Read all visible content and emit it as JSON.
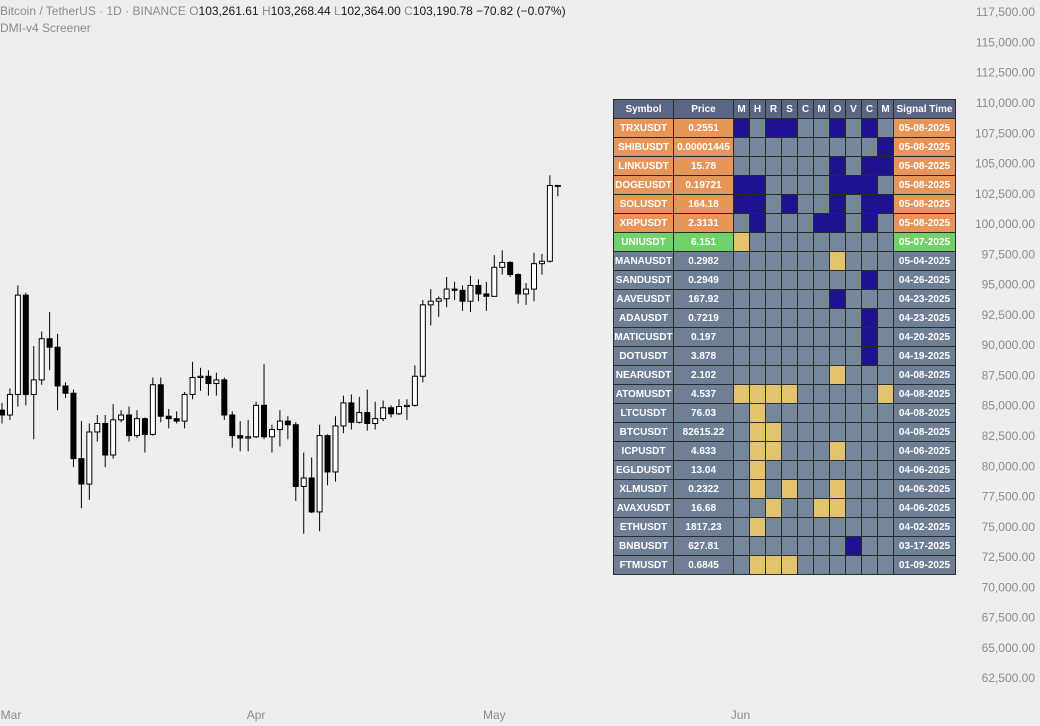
{
  "header": {
    "symbol": "Bitcoin / TetherUS · 1D · BINANCE",
    "ohlc": [
      {
        "label": "O",
        "value": "103,261.61"
      },
      {
        "label": "H",
        "value": "103,268.44"
      },
      {
        "label": "L",
        "value": "102,364.00"
      },
      {
        "label": "C",
        "value": "103,190.78"
      }
    ],
    "change": "−70.82 (−0.07%)",
    "indicator": "DMI-v4 Screener"
  },
  "chart_data": {
    "type": "candlestick",
    "open": [
      84700,
      84300,
      86000,
      94200,
      86000,
      87200,
      90600,
      89900,
      86700,
      86100,
      80700,
      78600,
      82900,
      83600,
      81000,
      83900,
      84300,
      82600,
      84000,
      82700,
      86800,
      84200,
      84000,
      83800,
      86000,
      87400,
      87500,
      86900,
      87200,
      84300,
      82600,
      82400,
      82500,
      85100,
      82500,
      83100,
      83800,
      83500,
      78400,
      79100,
      76300,
      82600,
      79600,
      83400,
      85300,
      83700,
      84500,
      83600,
      84000,
      84900,
      84400,
      85000,
      85100,
      87500,
      93400,
      93700,
      93900,
      94700,
      94600,
      93700,
      95000,
      94300,
      94100,
      96500,
      96900,
      95900,
      94300,
      94700,
      96800,
      97000,
      103261.61
    ],
    "high": [
      85300,
      86500,
      95000,
      94400,
      90000,
      91200,
      92800,
      91000,
      87000,
      86400,
      83800,
      83600,
      84300,
      84300,
      85200,
      84700,
      85000,
      84700,
      84100,
      87400,
      87400,
      84800,
      84600,
      86200,
      88700,
      88200,
      88000,
      87800,
      87400,
      84600,
      83800,
      83900,
      85400,
      88500,
      83500,
      84700,
      84200,
      83700,
      81200,
      80800,
      83500,
      82700,
      84200,
      85900,
      86000,
      85800,
      86400,
      85400,
      85500,
      85100,
      85600,
      85600,
      88400,
      93800,
      94700,
      94100,
      95700,
      95300,
      95000,
      95800,
      95500,
      95300,
      97500,
      97900,
      97000,
      96000,
      95200,
      97700,
      97600,
      104100,
      103268.44
    ],
    "low": [
      83600,
      83900,
      85000,
      85100,
      82300,
      86800,
      88000,
      84700,
      85700,
      80000,
      76600,
      77300,
      82100,
      80000,
      80700,
      83700,
      82100,
      82400,
      81200,
      82600,
      83700,
      83200,
      83600,
      83200,
      85600,
      86300,
      85900,
      85900,
      83900,
      81600,
      81300,
      81300,
      82400,
      82300,
      81200,
      81700,
      82300,
      77200,
      74500,
      76200,
      74700,
      78500,
      78800,
      82800,
      83100,
      83600,
      83000,
      83100,
      83800,
      84100,
      84300,
      83900,
      85000,
      87000,
      91700,
      92400,
      93200,
      93800,
      92900,
      92800,
      93700,
      92900,
      94100,
      95900,
      95700,
      93500,
      93400,
      93700,
      95900,
      96900,
      102364
    ],
    "close": [
      84300,
      86000,
      94200,
      86000,
      87200,
      90600,
      89900,
      86700,
      86100,
      80700,
      78600,
      82900,
      83600,
      81000,
      83900,
      84300,
      82600,
      84000,
      82700,
      86800,
      84200,
      84000,
      83800,
      86000,
      87400,
      87500,
      86900,
      87200,
      84300,
      82600,
      82400,
      82500,
      85100,
      82500,
      83100,
      83800,
      83500,
      78400,
      79100,
      76300,
      82600,
      79600,
      83400,
      85300,
      83700,
      84500,
      83600,
      84000,
      84900,
      84400,
      85000,
      85100,
      87500,
      93400,
      93700,
      93900,
      94700,
      94600,
      93700,
      95000,
      94300,
      94100,
      96500,
      96900,
      95900,
      94300,
      94700,
      96800,
      97000,
      103250,
      103190.78
    ],
    "up_color": "#ffffff",
    "down_color": "#000000",
    "wick_color": "#000000",
    "xlim": [
      -0.25,
      120.65
    ],
    "xticks": [
      {
        "value": 1,
        "label": "Mar"
      },
      {
        "value": 32,
        "label": "Apr"
      },
      {
        "value": 62,
        "label": "May"
      },
      {
        "value": 93,
        "label": "Jun"
      }
    ],
    "ylim": [
      62500,
      117500
    ],
    "yticks": [
      {
        "value": 117500,
        "label": "117,500.00"
      },
      {
        "value": 115000,
        "label": "115,000.00"
      },
      {
        "value": 112500,
        "label": "112,500.00"
      },
      {
        "value": 110000,
        "label": "110,000.00"
      },
      {
        "value": 107500,
        "label": "107,500.00"
      },
      {
        "value": 105000,
        "label": "105,000.00"
      },
      {
        "value": 102500,
        "label": "102,500.00"
      },
      {
        "value": 100000,
        "label": "100,000.00"
      },
      {
        "value": 97500,
        "label": "97,500.00"
      },
      {
        "value": 95000,
        "label": "95,000.00"
      },
      {
        "value": 92500,
        "label": "92,500.00"
      },
      {
        "value": 90000,
        "label": "90,000.00"
      },
      {
        "value": 87500,
        "label": "87,500.00"
      },
      {
        "value": 85000,
        "label": "85,000.00"
      },
      {
        "value": 82500,
        "label": "82,500.00"
      },
      {
        "value": 80000,
        "label": "80,000.00"
      },
      {
        "value": 77500,
        "label": "77,500.00"
      },
      {
        "value": 75000,
        "label": "75,000.00"
      },
      {
        "value": 72500,
        "label": "72,500.00"
      },
      {
        "value": 70000,
        "label": "70,000.00"
      },
      {
        "value": 67500,
        "label": "67,500.00"
      },
      {
        "value": 65000,
        "label": "65,000.00"
      },
      {
        "value": 62500,
        "label": "62,500.00"
      }
    ]
  },
  "screener": {
    "columns": [
      "Symbol",
      "Price",
      "M",
      "H",
      "R",
      "S",
      "C",
      "M",
      "O",
      "V",
      "C",
      "M",
      "Signal Time"
    ],
    "signal_colors": {
      "-1": "#e3c36b",
      "0": "#75879b",
      "1": "#1e128f"
    },
    "rows": [
      {
        "symbol": "TRXUSDT",
        "price": "0.2551",
        "time": "05-08-2025",
        "color": "#e8955a",
        "signals": [
          1,
          0,
          1,
          1,
          0,
          0,
          1,
          0,
          1,
          0
        ]
      },
      {
        "symbol": "SHIBUSDT",
        "price": "0.00001445",
        "time": "05-08-2025",
        "color": "#e8955a",
        "signals": [
          0,
          0,
          0,
          0,
          0,
          0,
          0,
          0,
          0,
          1
        ]
      },
      {
        "symbol": "LINKUSDT",
        "price": "15.78",
        "time": "05-08-2025",
        "color": "#e8955a",
        "signals": [
          0,
          0,
          0,
          0,
          0,
          0,
          1,
          0,
          1,
          1
        ]
      },
      {
        "symbol": "DOGEUSDT",
        "price": "0.19721",
        "time": "05-08-2025",
        "color": "#e8955a",
        "signals": [
          1,
          1,
          0,
          0,
          0,
          0,
          1,
          1,
          1,
          0
        ]
      },
      {
        "symbol": "SOLUSDT",
        "price": "164.18",
        "time": "05-08-2025",
        "color": "#e8955a",
        "signals": [
          1,
          1,
          0,
          1,
          0,
          0,
          1,
          0,
          1,
          1
        ]
      },
      {
        "symbol": "XRPUSDT",
        "price": "2.3131",
        "time": "05-08-2025",
        "color": "#e8955a",
        "signals": [
          0,
          1,
          0,
          0,
          0,
          1,
          1,
          0,
          1,
          0
        ]
      },
      {
        "symbol": "UNIUSDT",
        "price": "6.151",
        "time": "05-07-2025",
        "color": "#6fd36a",
        "signals": [
          -1,
          0,
          0,
          0,
          0,
          0,
          0,
          0,
          0,
          0
        ]
      },
      {
        "symbol": "MANAUSDT",
        "price": "0.2982",
        "time": "05-04-2025",
        "color": "#6e7f96",
        "signals": [
          0,
          0,
          0,
          0,
          0,
          0,
          -1,
          0,
          0,
          0
        ]
      },
      {
        "symbol": "SANDUSDT",
        "price": "0.2949",
        "time": "04-26-2025",
        "color": "#6e7f96",
        "signals": [
          0,
          0,
          0,
          0,
          0,
          0,
          0,
          0,
          1,
          0
        ]
      },
      {
        "symbol": "AAVEUSDT",
        "price": "167.92",
        "time": "04-23-2025",
        "color": "#6e7f96",
        "signals": [
          0,
          0,
          0,
          0,
          0,
          0,
          1,
          0,
          0,
          0
        ]
      },
      {
        "symbol": "ADAUSDT",
        "price": "0.7219",
        "time": "04-23-2025",
        "color": "#6e7f96",
        "signals": [
          0,
          0,
          0,
          0,
          0,
          0,
          0,
          0,
          1,
          0
        ]
      },
      {
        "symbol": "MATICUSDT",
        "price": "0.197",
        "time": "04-20-2025",
        "color": "#6e7f96",
        "signals": [
          0,
          0,
          0,
          0,
          0,
          0,
          0,
          0,
          1,
          0
        ]
      },
      {
        "symbol": "DOTUSDT",
        "price": "3.878",
        "time": "04-19-2025",
        "color": "#6e7f96",
        "signals": [
          0,
          0,
          0,
          0,
          0,
          0,
          0,
          0,
          1,
          0
        ]
      },
      {
        "symbol": "NEARUSDT",
        "price": "2.102",
        "time": "04-08-2025",
        "color": "#6e7f96",
        "signals": [
          0,
          0,
          0,
          0,
          0,
          0,
          -1,
          0,
          0,
          0
        ]
      },
      {
        "symbol": "ATOMUSDT",
        "price": "4.537",
        "time": "04-08-2025",
        "color": "#6e7f96",
        "signals": [
          -1,
          -1,
          -1,
          -1,
          0,
          0,
          0,
          0,
          0,
          -1
        ]
      },
      {
        "symbol": "LTCUSDT",
        "price": "76.03",
        "time": "04-08-2025",
        "color": "#6e7f96",
        "signals": [
          0,
          -1,
          0,
          0,
          0,
          0,
          0,
          0,
          0,
          0
        ]
      },
      {
        "symbol": "BTCUSDT",
        "price": "82615.22",
        "time": "04-08-2025",
        "color": "#6e7f96",
        "signals": [
          0,
          -1,
          -1,
          0,
          0,
          0,
          0,
          0,
          0,
          0
        ]
      },
      {
        "symbol": "ICPUSDT",
        "price": "4.633",
        "time": "04-06-2025",
        "color": "#6e7f96",
        "signals": [
          0,
          -1,
          -1,
          0,
          0,
          0,
          -1,
          0,
          0,
          0
        ]
      },
      {
        "symbol": "EGLDUSDT",
        "price": "13.04",
        "time": "04-06-2025",
        "color": "#6e7f96",
        "signals": [
          0,
          -1,
          0,
          0,
          0,
          0,
          0,
          0,
          0,
          0
        ]
      },
      {
        "symbol": "XLMUSDT",
        "price": "0.2322",
        "time": "04-06-2025",
        "color": "#6e7f96",
        "signals": [
          0,
          -1,
          0,
          -1,
          0,
          0,
          -1,
          0,
          0,
          0
        ]
      },
      {
        "symbol": "AVAXUSDT",
        "price": "16.68",
        "time": "04-06-2025",
        "color": "#6e7f96",
        "signals": [
          0,
          0,
          -1,
          0,
          0,
          -1,
          -1,
          0,
          0,
          0
        ]
      },
      {
        "symbol": "ETHUSDT",
        "price": "1817.23",
        "time": "04-02-2025",
        "color": "#6e7f96",
        "signals": [
          0,
          -1,
          0,
          0,
          0,
          0,
          0,
          0,
          0,
          0
        ]
      },
      {
        "symbol": "BNBUSDT",
        "price": "627.81",
        "time": "03-17-2025",
        "color": "#6e7f96",
        "signals": [
          0,
          0,
          0,
          0,
          0,
          0,
          0,
          1,
          0,
          0
        ]
      },
      {
        "symbol": "FTMUSDT",
        "price": "0.6845",
        "time": "01-09-2025",
        "color": "#6e7f96",
        "signals": [
          0,
          -1,
          -1,
          -1,
          0,
          0,
          0,
          0,
          0,
          0
        ]
      }
    ]
  }
}
